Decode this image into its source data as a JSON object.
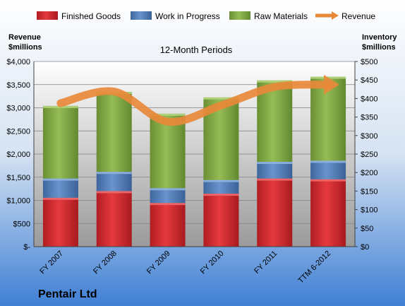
{
  "chart_data": {
    "type": "bar",
    "stacked": true,
    "title": "12-Month Periods",
    "company": "Pentair Ltd",
    "categories": [
      "FY 2007",
      "FY 2008",
      "FY 2009",
      "FY 2010",
      "FY 2011",
      "TTM 6-2012"
    ],
    "series": [
      {
        "name": "Finished Goods",
        "axis": "right",
        "color": "#d9262b",
        "values": [
          132,
          150,
          118,
          143,
          184,
          182
        ]
      },
      {
        "name": "Work in Progress",
        "axis": "right",
        "color": "#4f7fbf",
        "values": [
          52,
          52,
          40,
          37,
          45,
          50
        ]
      },
      {
        "name": "Raw Materials",
        "axis": "right",
        "color": "#7fa540",
        "values": [
          196,
          216,
          201,
          223,
          220,
          227
        ]
      },
      {
        "name": "Revenue",
        "axis": "left",
        "type": "line",
        "color": "#e8893a",
        "values": [
          3100,
          3350,
          2700,
          3050,
          3450,
          3500
        ]
      }
    ],
    "ylabel_left": [
      "Revenue",
      "$millions"
    ],
    "ylabel_right": [
      "Inventory",
      "$millions"
    ],
    "ylim_left": [
      0,
      4000
    ],
    "ylim_right": [
      0,
      500
    ],
    "yticks_left": [
      "$-",
      "$500",
      "$1,000",
      "$1,500",
      "$2,000",
      "$2,500",
      "$3,000",
      "$3,500",
      "$4,000"
    ],
    "yticks_right": [
      "$0",
      "$50",
      "$100",
      "$150",
      "$200",
      "$250",
      "$300",
      "$350",
      "$400",
      "$450",
      "$500"
    ],
    "legend_position": "top"
  }
}
